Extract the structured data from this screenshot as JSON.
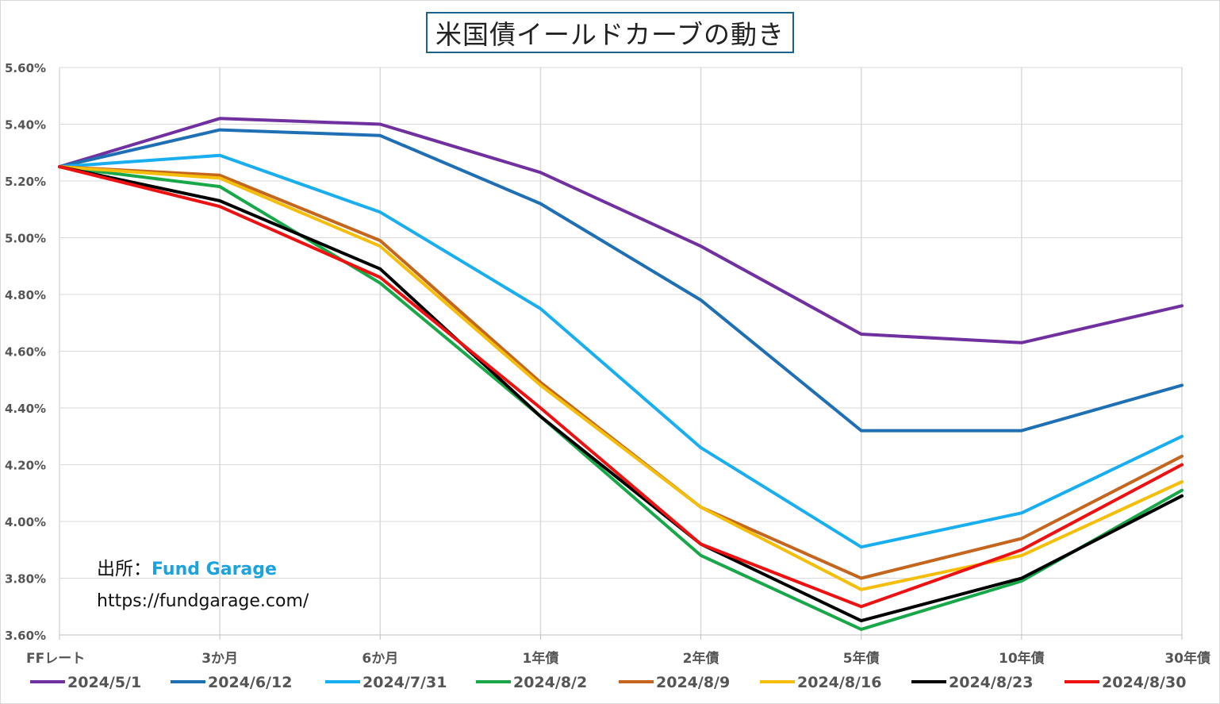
{
  "chart_data": {
    "type": "line",
    "title": "米国債イールドカーブの動き",
    "categories": [
      "FFレート",
      "3か月",
      "6か月",
      "1年債",
      "2年債",
      "5年債",
      "10年債",
      "30年債"
    ],
    "ylim": [
      3.6,
      5.6
    ],
    "ytick_labels": [
      "5.60%",
      "5.40%",
      "5.20%",
      "5.00%",
      "4.80%",
      "4.60%",
      "4.40%",
      "4.20%",
      "4.00%",
      "3.80%",
      "3.60%"
    ],
    "grid": "vertical-and-horizontal",
    "legend_position": "bottom",
    "series": [
      {
        "name": "2024/5/1",
        "color": "#7030a0",
        "values": [
          5.25,
          5.42,
          5.4,
          5.23,
          4.97,
          4.66,
          4.63,
          4.76
        ]
      },
      {
        "name": "2024/6/12",
        "color": "#1f6fb5",
        "values": [
          5.25,
          5.38,
          5.36,
          5.12,
          4.78,
          4.32,
          4.32,
          4.48
        ]
      },
      {
        "name": "2024/7/31",
        "color": "#19aef0",
        "values": [
          5.25,
          5.29,
          5.09,
          4.75,
          4.26,
          3.91,
          4.03,
          4.3
        ]
      },
      {
        "name": "2024/8/2",
        "color": "#18a84a",
        "values": [
          5.25,
          5.18,
          4.84,
          4.37,
          3.88,
          3.62,
          3.79,
          4.11
        ]
      },
      {
        "name": "2024/8/9",
        "color": "#c5661f",
        "values": [
          5.25,
          5.22,
          4.99,
          4.49,
          4.05,
          3.8,
          3.94,
          4.23
        ]
      },
      {
        "name": "2024/8/16",
        "color": "#f5be0a",
        "values": [
          5.25,
          5.21,
          4.97,
          4.48,
          4.05,
          3.76,
          3.88,
          4.14
        ]
      },
      {
        "name": "2024/8/23",
        "color": "#000000",
        "values": [
          5.25,
          5.13,
          4.89,
          4.37,
          3.92,
          3.65,
          3.8,
          4.09
        ]
      },
      {
        "name": "2024/8/30",
        "color": "#ee1111",
        "values": [
          5.25,
          5.11,
          4.86,
          4.4,
          3.92,
          3.7,
          3.9,
          4.2
        ]
      }
    ]
  },
  "source": {
    "label": "出所：",
    "name": "Fund Garage",
    "url": "https://fundgarage.com/"
  }
}
